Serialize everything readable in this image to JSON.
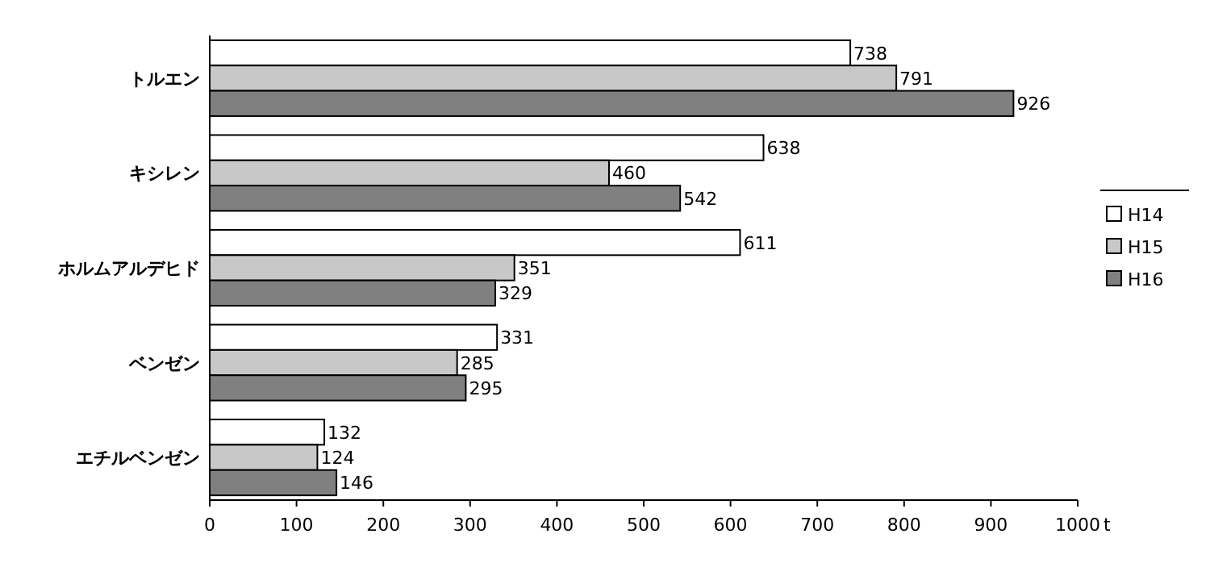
{
  "chart_data": {
    "type": "bar",
    "orientation": "horizontal",
    "categories": [
      "トルエン",
      "キシレン",
      "ホルムアルデヒド",
      "ベンゼン",
      "エチルベンゼン"
    ],
    "series": [
      {
        "name": "H14",
        "color": "#ffffff",
        "values": [
          738,
          638,
          611,
          331,
          132
        ]
      },
      {
        "name": "H15",
        "color": "#c8c8c8",
        "values": [
          791,
          460,
          351,
          285,
          124
        ]
      },
      {
        "name": "H16",
        "color": "#808080",
        "values": [
          926,
          542,
          329,
          295,
          146
        ]
      }
    ],
    "xlim": [
      0,
      1000
    ],
    "xticks": [
      0,
      100,
      200,
      300,
      400,
      500,
      600,
      700,
      800,
      900,
      1000
    ],
    "xlabel": "t",
    "data_labels": true,
    "legend": "right",
    "grid": false
  }
}
